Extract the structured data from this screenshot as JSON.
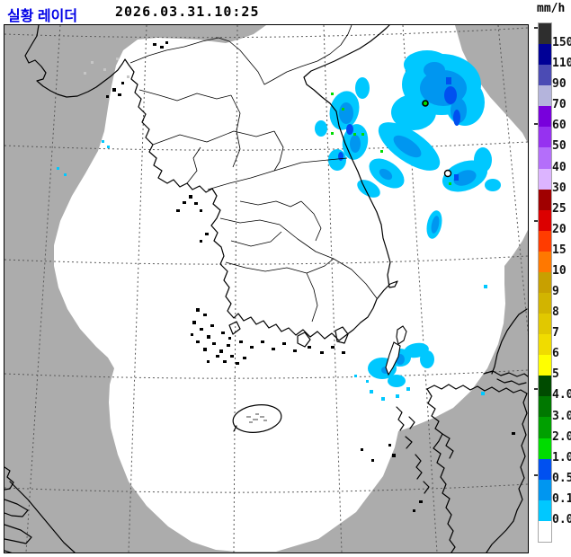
{
  "header": {
    "title": "실황 레이더",
    "title_color": "#0000E6",
    "timestamp": "2026.03.31.10:25"
  },
  "legend": {
    "unit": "mm/h",
    "boundary_labels": [
      "150",
      "110",
      "90",
      "70",
      "60",
      "50",
      "40",
      "30",
      "25",
      "20",
      "15",
      "10",
      "9",
      "8",
      "7",
      "6",
      "5",
      "4.0",
      "3.0",
      "2.0",
      "1.0",
      "0.5",
      "0.1",
      "0.0"
    ],
    "segment_colors": [
      "#2E2E2E",
      "#000096",
      "#4B4BB4",
      "#B4B4DC",
      "#7800DC",
      "#9632F0",
      "#B46EFA",
      "#DCB4FF",
      "#A00000",
      "#DC0000",
      "#FF3C00",
      "#FF7800",
      "#C8A000",
      "#D2B400",
      "#E1C800",
      "#F0DC00",
      "#FFFF00",
      "#004B00",
      "#007800",
      "#00A000",
      "#00DC00",
      "#0050F0",
      "#0096F0",
      "#00C8FF",
      "#FFFFFF"
    ]
  },
  "map": {
    "background_color": "#ACACAC",
    "coverage_color": "#FFFFFF",
    "coastline_color": "#000000",
    "gridline_color": "#5A5A5A",
    "clutter_color": "#C6C6C6",
    "echo_colors": {
      "rain_very_light": "#00C8FF",
      "rain_light": "#0096F0",
      "rain_moderate": "#0050F0",
      "rain_green": "#00DC00"
    }
  }
}
